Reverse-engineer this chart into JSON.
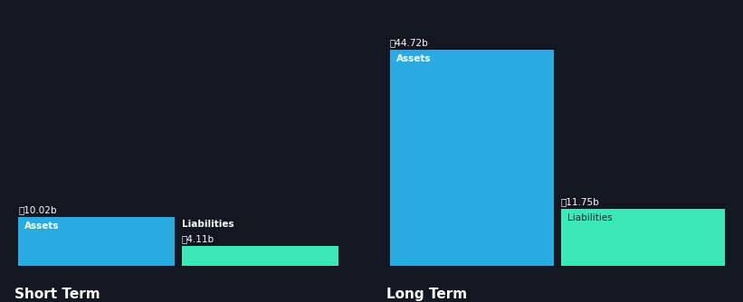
{
  "background_color": "#131722",
  "text_color": "#ffffff",
  "liab_text_color": "#1a2a3a",
  "bar_color_assets": "#29abe2",
  "bar_color_liabilities": "#3de8b8",
  "short_term": {
    "assets_value": 10.02,
    "liabilities_value": 4.11,
    "label": "Short Term"
  },
  "long_term": {
    "assets_value": 44.72,
    "liabilities_value": 11.75,
    "label": "Long Term"
  },
  "currency_symbol": "৳",
  "value_suffix": "b",
  "assets_label": "Assets",
  "liabilities_label": "Liabilities",
  "global_max": 44.72,
  "title_fontsize": 11,
  "label_fontsize": 7.5,
  "value_fontsize": 7.5
}
